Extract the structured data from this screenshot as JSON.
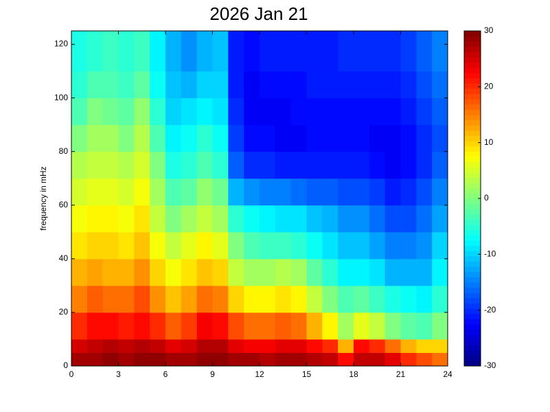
{
  "chart_data": {
    "type": "heatmap",
    "title": "2026 Jan 21",
    "ylabel": "frequency in mHz",
    "xbins": [
      0,
      1,
      2,
      3,
      4,
      5,
      6,
      7,
      8,
      9,
      10,
      11,
      12,
      13,
      14,
      15,
      16,
      17,
      18,
      19,
      20,
      21,
      22,
      23,
      24
    ],
    "ybins": [
      0,
      5,
      10,
      20,
      30,
      40,
      50,
      60,
      70,
      80,
      90,
      100,
      110,
      125
    ],
    "z": [
      [
        28,
        28,
        29,
        28,
        29,
        29,
        28,
        28,
        29,
        29,
        28,
        28,
        27,
        28,
        28,
        27,
        26,
        22,
        26,
        26,
        24,
        20,
        18,
        16
      ],
      [
        25,
        26,
        27,
        26,
        27,
        26,
        24,
        25,
        27,
        27,
        24,
        23,
        23,
        24,
        24,
        22,
        20,
        12,
        22,
        20,
        16,
        12,
        10,
        10
      ],
      [
        20,
        22,
        22,
        21,
        22,
        20,
        17,
        19,
        23,
        22,
        18,
        16,
        16,
        17,
        16,
        12,
        8,
        2,
        6,
        4,
        0,
        -2,
        -3,
        0
      ],
      [
        15,
        17,
        16,
        16,
        18,
        14,
        11,
        13,
        16,
        15,
        10,
        8,
        8,
        9,
        8,
        4,
        0,
        -3,
        -2,
        -4,
        -6,
        -7,
        -8,
        -5
      ],
      [
        12,
        13,
        12,
        12,
        14,
        10,
        7,
        9,
        11,
        10,
        4,
        2,
        2,
        3,
        2,
        -2,
        -5,
        -8,
        -8,
        -9,
        -12,
        -12,
        -12,
        -8
      ],
      [
        9,
        10,
        10,
        9,
        11,
        7,
        4,
        6,
        8,
        6,
        0,
        -3,
        -4,
        -4,
        -5,
        -7,
        -9,
        -11,
        -11,
        -13,
        -15,
        -15,
        -14,
        -10
      ],
      [
        7,
        8,
        8,
        7,
        9,
        4,
        0,
        2,
        4,
        2,
        -5,
        -7,
        -8,
        -9,
        -9,
        -11,
        -12,
        -14,
        -14,
        -16,
        -18,
        -18,
        -16,
        -13
      ],
      [
        5,
        6,
        6,
        5,
        7,
        2,
        -3,
        -2,
        1,
        -1,
        -12,
        -14,
        -15,
        -15,
        -16,
        -17,
        -17,
        -18,
        -18,
        -19,
        -21,
        -20,
        -18,
        -15
      ],
      [
        3,
        4,
        4,
        3,
        5,
        0,
        -6,
        -5,
        -3,
        -5,
        -17,
        -20,
        -20,
        -21,
        -21,
        -21,
        -21,
        -21,
        -21,
        -22,
        -23,
        -22,
        -20,
        -17
      ],
      [
        0,
        2,
        2,
        0,
        3,
        -3,
        -8,
        -7,
        -5,
        -7,
        -19,
        -22,
        -22,
        -23,
        -23,
        -22,
        -22,
        -22,
        -22,
        -23,
        -23,
        -22,
        -20,
        -18
      ],
      [
        -3,
        0,
        -1,
        -2,
        1,
        -5,
        -10,
        -9,
        -8,
        -9,
        -20,
        -23,
        -23,
        -23,
        -22,
        -22,
        -22,
        -22,
        -22,
        -22,
        -22,
        -21,
        -19,
        -17
      ],
      [
        -5,
        -3,
        -3,
        -4,
        -2,
        -7,
        -11,
        -12,
        -10,
        -10,
        -21,
        -23,
        -22,
        -22,
        -22,
        -21,
        -21,
        -21,
        -21,
        -21,
        -21,
        -20,
        -18,
        -16
      ],
      [
        -6,
        -5,
        -4,
        -5,
        -4,
        -8,
        -12,
        -14,
        -12,
        -11,
        -21,
        -22,
        -21,
        -21,
        -21,
        -21,
        -21,
        -20,
        -20,
        -20,
        -20,
        -19,
        -17,
        -15
      ]
    ],
    "xlim": [
      0,
      24
    ],
    "xticks": [
      0,
      3,
      6,
      9,
      12,
      15,
      18,
      21,
      24
    ],
    "ylim": [
      0,
      125
    ],
    "yticks": [
      0,
      20,
      40,
      60,
      80,
      100,
      120
    ],
    "clim": [
      -30,
      30
    ],
    "cticks": [
      -30,
      -20,
      -10,
      0,
      10,
      20,
      30
    ],
    "colormap": "jet"
  }
}
